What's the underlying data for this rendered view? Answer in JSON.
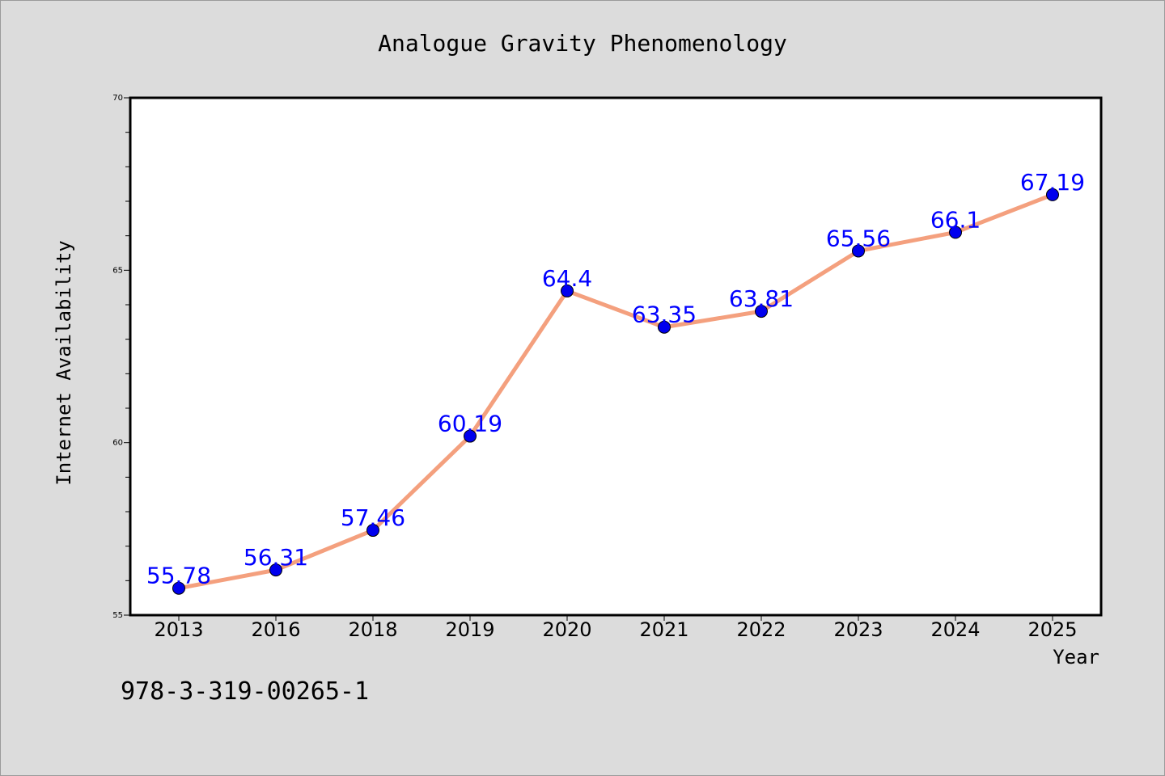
{
  "figure_background": "#dcdcdc",
  "plot_background": "#ffffff",
  "footer_text": "978-3-319-00265-1",
  "chart_data": {
    "type": "line",
    "title": "Analogue Gravity Phenomenology",
    "xlabel": "Year",
    "ylabel": "Internet Availability",
    "categories": [
      "2013",
      "2016",
      "2018",
      "2019",
      "2020",
      "2021",
      "2022",
      "2023",
      "2024",
      "2025"
    ],
    "series": [
      {
        "values": [
          55.78,
          56.31,
          57.46,
          60.19,
          64.4,
          63.35,
          63.81,
          65.56,
          66.1,
          67.19
        ],
        "labels": [
          "55.78",
          "56.31",
          "57.46",
          "60.19",
          "64.4",
          "63.35",
          "63.81",
          "65.56",
          "66.1",
          "67.19"
        ],
        "line_color": "#f4a07e",
        "marker_color": "#0000ee",
        "label_color": "#0000ff"
      }
    ],
    "ylim": [
      55,
      70
    ],
    "yticks_major": [
      "55",
      "60",
      "65",
      "70"
    ],
    "grid": false,
    "legend": "none"
  }
}
